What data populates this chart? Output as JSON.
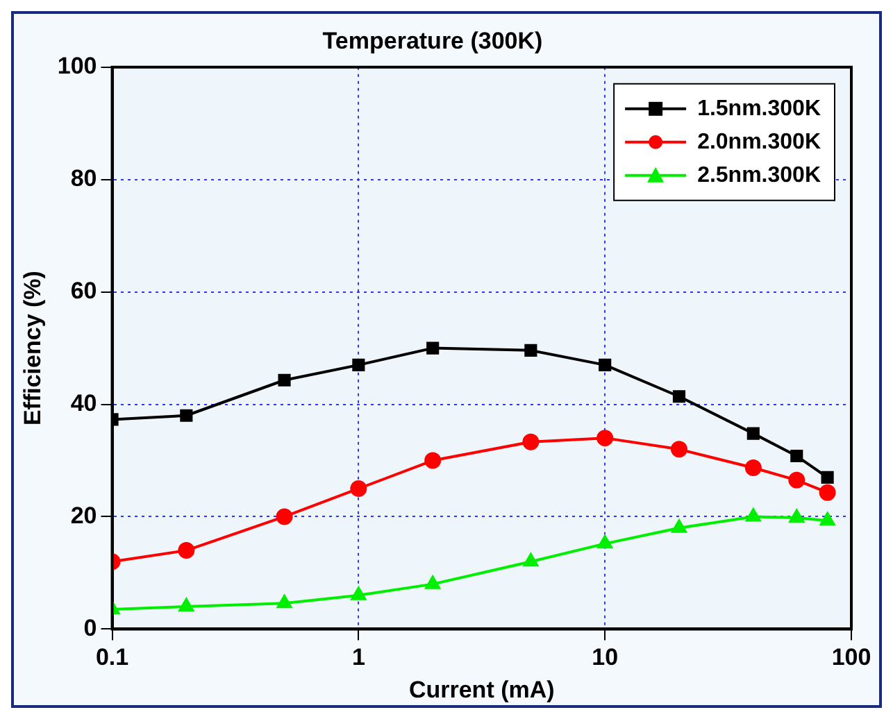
{
  "chart_data": {
    "type": "line",
    "title": "Temperature (300K)",
    "xlabel": "Current (mA)",
    "ylabel": "Efficiency (%)",
    "x": [
      0.1,
      0.2,
      0.5,
      1,
      2,
      5,
      10,
      20,
      40,
      60,
      80
    ],
    "series": [
      {
        "name": "1.5nm.300K",
        "color": "#000000",
        "marker": "square",
        "values": [
          37.3,
          38,
          44.3,
          47,
          50,
          49.6,
          47,
          41.4,
          34.8,
          30.8,
          27
        ]
      },
      {
        "name": "2.0nm.300K",
        "color": "#ff0000",
        "marker": "circle",
        "values": [
          12,
          14,
          20,
          25,
          30,
          33.3,
          34,
          32,
          28.7,
          26.5,
          24.3
        ]
      },
      {
        "name": "2.5nm.300K",
        "color": "#00ee00",
        "marker": "triangle",
        "values": [
          3.5,
          4,
          4.6,
          6,
          8,
          12,
          15.2,
          18,
          20,
          19.8,
          19.3
        ]
      }
    ],
    "log": "x",
    "xlim": [
      0.1,
      100
    ],
    "xticks": [
      0.1,
      1,
      10,
      100
    ],
    "ylim": [
      0,
      100
    ],
    "yticks": [
      0,
      20,
      40,
      60,
      80,
      100
    ],
    "grid": true,
    "legend": "top right"
  }
}
